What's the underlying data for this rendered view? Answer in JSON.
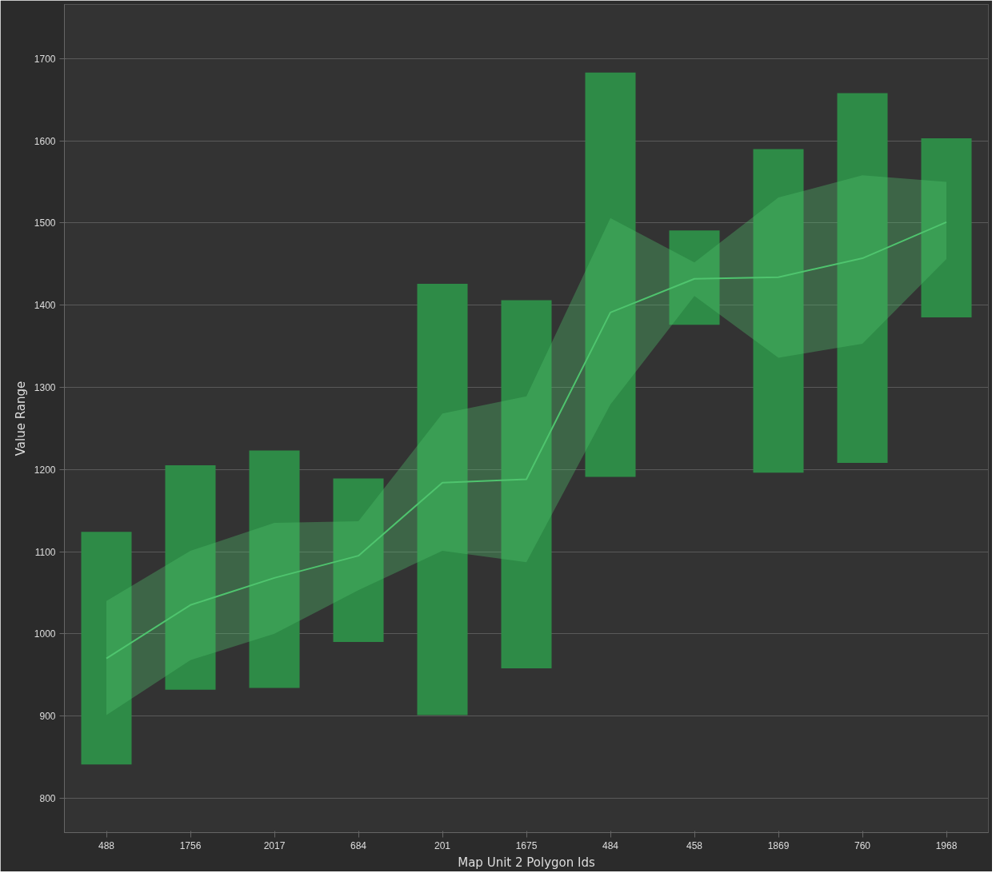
{
  "chart_data": {
    "type": "bar",
    "xlabel": "Map Unit 2 Polygon Ids",
    "ylabel": "Value Range",
    "categories": [
      "488",
      "1756",
      "2017",
      "684",
      "201",
      "1675",
      "484",
      "458",
      "1869",
      "760",
      "1968"
    ],
    "series": [
      {
        "color": "#2e8b47",
        "base": [
          841,
          932,
          934,
          990,
          901,
          958,
          1191,
          1376,
          1196,
          1208,
          1385
        ],
        "values": [
          283,
          273,
          289,
          199,
          525,
          448,
          492,
          115,
          394,
          450,
          218
        ]
      },
      {
        "type": "line",
        "color": "#4fc46e",
        "values": [
          970,
          1035,
          1068,
          1095,
          1184,
          1188,
          1391,
          1432,
          1434,
          1457,
          1501
        ],
        "lower": [
          901,
          968,
          1000,
          1053,
          1101,
          1087,
          1279,
          1411,
          1336,
          1353,
          1456
        ],
        "upper": [
          1040,
          1101,
          1135,
          1137,
          1268,
          1289,
          1506,
          1452,
          1531,
          1558,
          1550
        ]
      }
    ],
    "ylim": [
      758,
      1766
    ],
    "yticks": [
      800,
      900,
      1000,
      1100,
      1200,
      1300,
      1400,
      1500,
      1600,
      1700
    ],
    "grid": "y",
    "marker": "none",
    "line_style": "solid"
  }
}
